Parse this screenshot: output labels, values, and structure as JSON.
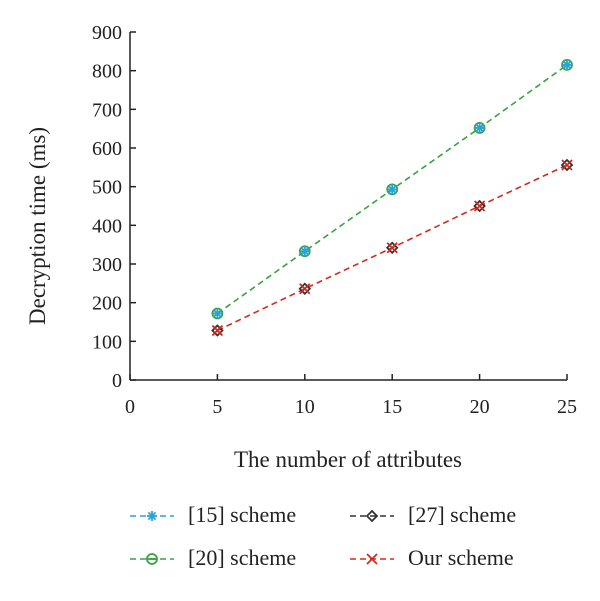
{
  "chart_data": {
    "type": "line",
    "title": "",
    "xlabel": "The number of attributes",
    "ylabel": "Decryption time (ms)",
    "xlim": [
      0,
      25
    ],
    "ylim": [
      0,
      900
    ],
    "xticks": [
      "0",
      "5",
      "10",
      "15",
      "20",
      "25"
    ],
    "yticks": [
      "0",
      "100",
      "200",
      "300",
      "400",
      "500",
      "600",
      "700",
      "800",
      "900"
    ],
    "grid": false,
    "legend_position": "bottom",
    "x": [
      5,
      10,
      15,
      20,
      25
    ],
    "series": [
      {
        "name": "[15] scheme",
        "values": [
          172,
          333,
          493,
          652,
          815
        ],
        "color": "#29a3d9",
        "marker": "asterisk",
        "dash": "dashed"
      },
      {
        "name": "[27] scheme",
        "values": [
          128,
          236,
          342,
          450,
          556
        ],
        "color": "#333333",
        "marker": "diamond",
        "dash": "dashed"
      },
      {
        "name": "[20] scheme",
        "values": [
          172,
          333,
          493,
          652,
          815
        ],
        "color": "#3aa142",
        "marker": "circle-bar",
        "dash": "dashed"
      },
      {
        "name": "Our scheme",
        "values": [
          128,
          236,
          342,
          450,
          556
        ],
        "color": "#d02b1f",
        "marker": "x",
        "dash": "dashed"
      }
    ]
  }
}
